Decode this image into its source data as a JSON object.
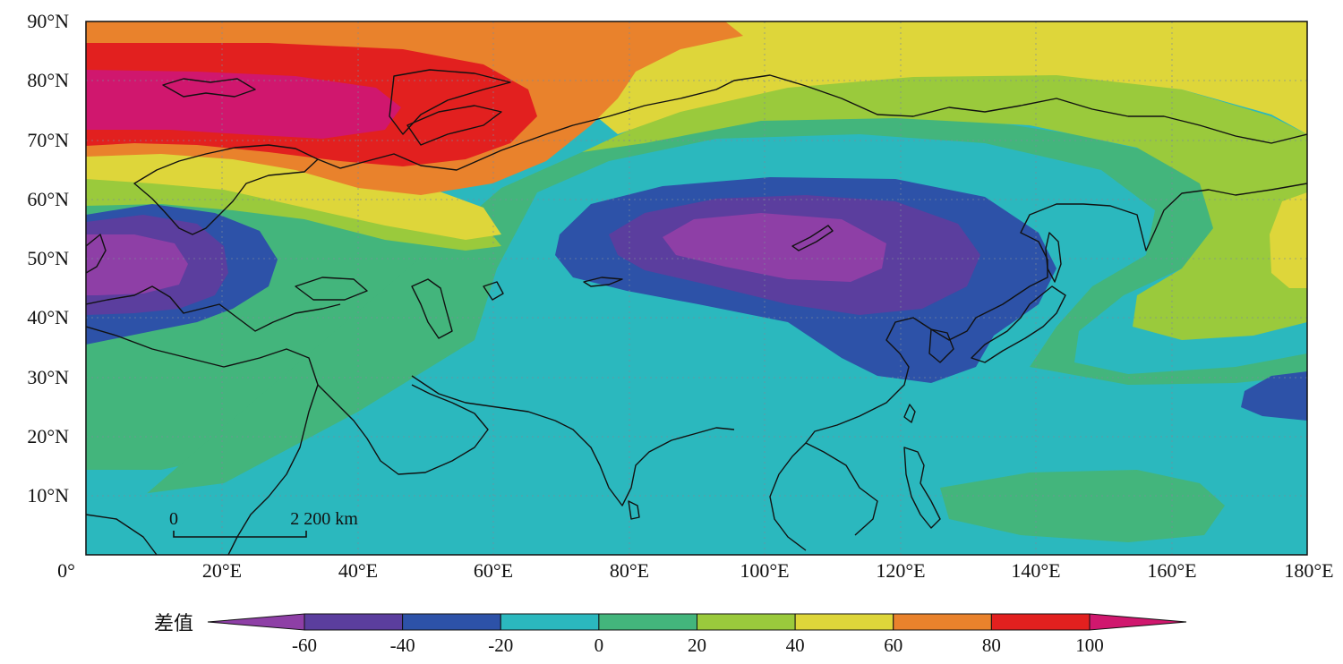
{
  "map": {
    "lat_labels": [
      "90°N",
      "80°N",
      "70°N",
      "60°N",
      "50°N",
      "40°N",
      "30°N",
      "20°N",
      "10°N"
    ],
    "lon_labels": [
      "0°",
      "20°E",
      "40°E",
      "60°E",
      "80°E",
      "100°E",
      "120°E",
      "140°E",
      "160°E",
      "180°E"
    ],
    "scale_bar": {
      "start_label": "0",
      "end_label": "2 200 km"
    }
  },
  "legend": {
    "title": "差值",
    "ticks": [
      "-60",
      "-40",
      "-20",
      "0",
      "20",
      "40",
      "60",
      "80",
      "100"
    ],
    "colors": [
      "#8E3FA6",
      "#5B3E9E",
      "#2D52A8",
      "#2BB8BE",
      "#43B57C",
      "#9ACA3C",
      "#DED63A",
      "#E9822C",
      "#E2201F",
      "#D0176E"
    ]
  }
}
